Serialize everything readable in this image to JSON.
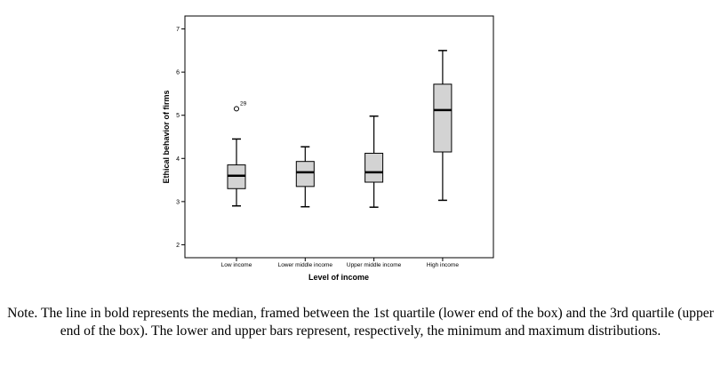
{
  "chart_data": {
    "type": "boxplot",
    "xlabel": "Level of income",
    "ylabel": "Ethical behavior of firms",
    "ylim": [
      1.7,
      7.3
    ],
    "yticks": [
      2,
      3,
      4,
      5,
      6,
      7
    ],
    "grid": false,
    "categories": [
      "Low income",
      "Lower middle income",
      "Upper middle income",
      "High income"
    ],
    "boxes": [
      {
        "category": "Low income",
        "min": 2.9,
        "q1": 3.3,
        "median": 3.6,
        "q3": 3.85,
        "max": 4.45
      },
      {
        "category": "Lower middle income",
        "min": 2.88,
        "q1": 3.35,
        "median": 3.68,
        "q3": 3.93,
        "max": 4.27
      },
      {
        "category": "Upper middle income",
        "min": 2.87,
        "q1": 3.45,
        "median": 3.68,
        "q3": 4.12,
        "max": 4.98
      },
      {
        "category": "High income",
        "min": 3.03,
        "q1": 4.15,
        "median": 5.12,
        "q3": 5.72,
        "max": 6.5
      }
    ],
    "outliers": [
      {
        "category": "Low income",
        "value": 5.15,
        "label": "29"
      }
    ],
    "colors": {
      "box_fill": "#d3d3d3",
      "stroke": "#000000"
    }
  },
  "note": "Note. The line in bold represents the median, framed between the 1st quartile (lower end of the box) and the 3rd quartile (upper end of the box). The lower and upper bars represent, respectively, the minimum and maximum distributions."
}
